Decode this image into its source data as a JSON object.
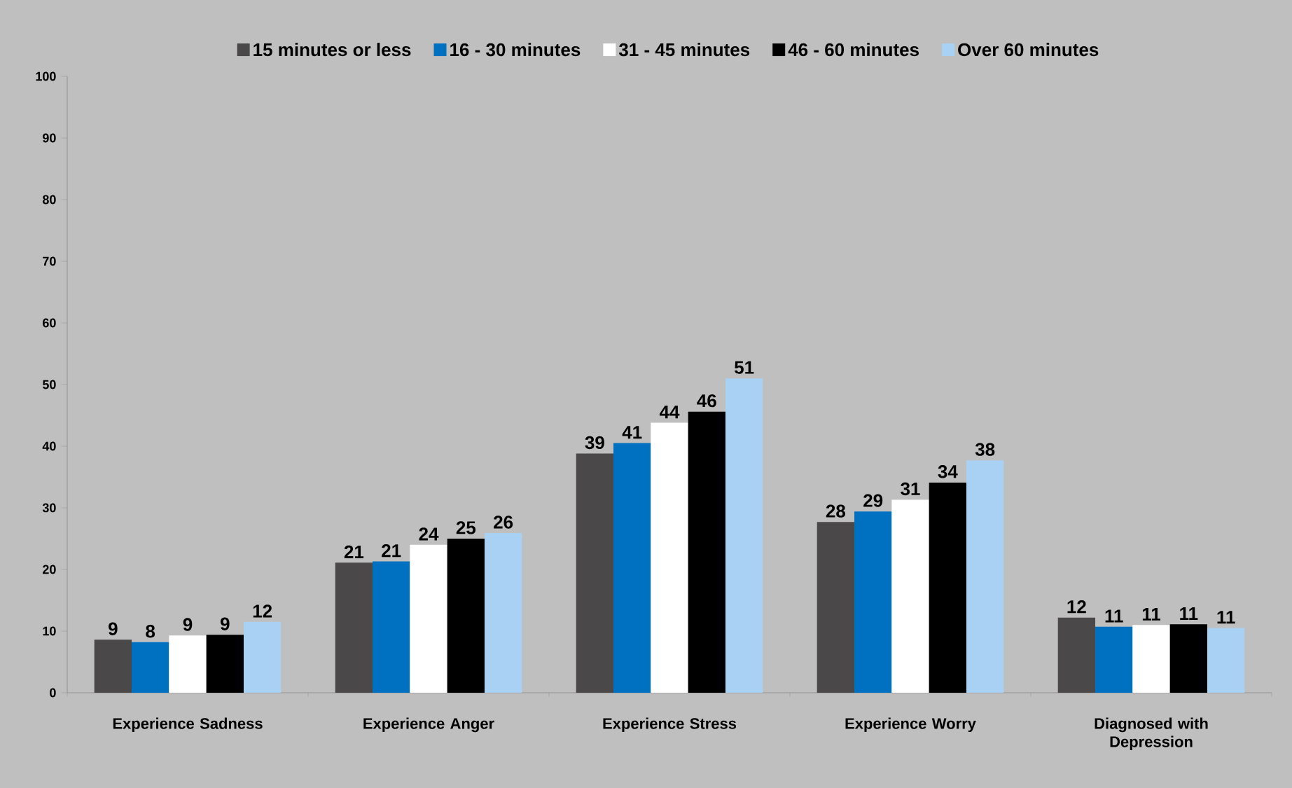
{
  "chart_data": {
    "type": "bar",
    "categories": [
      "Experience Sadness",
      "Experience Anger",
      "Experience Stress",
      "Experience Worry",
      "Diagnosed with Depression"
    ],
    "series": [
      {
        "name": "15 minutes or less",
        "color": "#4a4848",
        "values": [
          8.6,
          21.1,
          38.8,
          27.7,
          12.2
        ],
        "value_labels": [
          "9",
          "21",
          "39",
          "28",
          "12"
        ]
      },
      {
        "name": "16 - 30 minutes",
        "color": "#0070c0",
        "values": [
          8.2,
          21.3,
          40.5,
          29.4,
          10.7
        ],
        "value_labels": [
          "8",
          "21",
          "41",
          "29",
          "11"
        ]
      },
      {
        "name": "31 - 45 minutes",
        "color": "#ffffff",
        "values": [
          9.3,
          24.0,
          43.8,
          31.3,
          11.0
        ],
        "value_labels": [
          "9",
          "24",
          "44",
          "31",
          "11"
        ]
      },
      {
        "name": "46 - 60 minutes",
        "color": "#000000",
        "values": [
          9.4,
          25.0,
          45.6,
          34.1,
          11.1
        ],
        "value_labels": [
          "9",
          "25",
          "46",
          "34",
          "11"
        ]
      },
      {
        "name": "Over 60 minutes",
        "color": "#a9d1f3",
        "values": [
          11.5,
          25.9,
          51.0,
          37.7,
          10.5
        ],
        "value_labels": [
          "12",
          "26",
          "51",
          "38",
          "11"
        ]
      }
    ],
    "ylim": [
      0,
      100
    ],
    "yticks": [
      0,
      10,
      20,
      30,
      40,
      50,
      60,
      70,
      80,
      90,
      100
    ],
    "legend": "top"
  }
}
